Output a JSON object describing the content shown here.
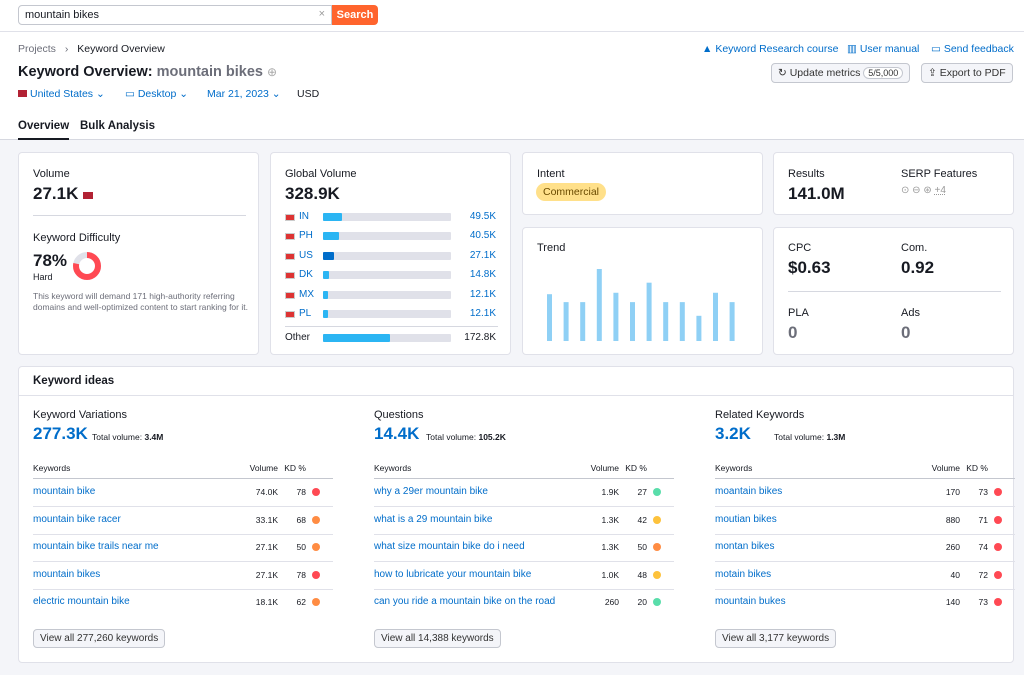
{
  "search": {
    "query": "mountain bikes",
    "button": "Search"
  },
  "breadcrumb": [
    "Projects",
    "Keyword Overview"
  ],
  "top_links": [
    "Keyword Research course",
    "User manual",
    "Send feedback"
  ],
  "header": {
    "title": "Keyword Overview:",
    "keyword": "mountain bikes"
  },
  "actions": {
    "update": "Update metrics",
    "quota": "5/5,000",
    "export": "Export to PDF"
  },
  "filters": [
    "United States",
    "Desktop",
    "Mar 21, 2023",
    "USD"
  ],
  "tabs": [
    "Overview",
    "Bulk Analysis"
  ],
  "volume": {
    "label": "Volume",
    "value": "27.1K"
  },
  "difficulty": {
    "label": "Keyword Difficulty",
    "value": 78,
    "value_label": "78%",
    "level": "Hard",
    "color": "#ff4953",
    "description": "This keyword will demand 171 high-authority referring domains and well-optimized content to start ranking for it."
  },
  "global_volume": {
    "label": "Global Volume",
    "value": 328900,
    "value_label": "328.9K",
    "color": "#2bb5f3",
    "countries": [
      {
        "code": "IN",
        "value": 49500,
        "value_label": "49.5K"
      },
      {
        "code": "PH",
        "value": 40500,
        "value_label": "40.5K"
      },
      {
        "code": "US",
        "value": 27100,
        "value_label": "27.1K"
      },
      {
        "code": "DK",
        "value": 14800,
        "value_label": "14.8K"
      },
      {
        "code": "MX",
        "value": 12100,
        "value_label": "12.1K"
      },
      {
        "code": "PL",
        "value": 12100,
        "value_label": "12.1K"
      }
    ],
    "other": {
      "code": "Other",
      "value": 172800,
      "value_label": "172.8K"
    }
  },
  "intent": {
    "label": "Intent",
    "value": "Commercial"
  },
  "trend": {
    "label": "Trend",
    "color": "#8fd0f5",
    "ylim": [
      0,
      100
    ],
    "values": [
      65,
      54,
      54,
      100,
      67,
      54,
      81,
      54,
      54,
      35,
      67,
      54
    ]
  },
  "results": {
    "label": "Results",
    "value": "141.0M",
    "serp_label": "SERP Features",
    "serp_more": "+4"
  },
  "metrics": [
    {
      "label": "CPC",
      "value": "$0.63"
    },
    {
      "label": "Com.",
      "value": "0.92"
    },
    {
      "label": "PLA",
      "value": "0"
    },
    {
      "label": "Ads",
      "value": "0"
    }
  ],
  "ideas": {
    "title": "Keyword ideas",
    "columns": [
      {
        "title": "Keyword Variations",
        "count": "277.3K",
        "total_label": "Total volume:",
        "total": "3.4M",
        "headers": [
          "Keywords",
          "Volume",
          "KD %"
        ],
        "rows": [
          {
            "keyword": "mountain bike",
            "volume": "74.0K",
            "kd": 78,
            "color": "#ff4953"
          },
          {
            "keyword": "mountain bike racer",
            "volume": "33.1K",
            "kd": 68,
            "color": "#ff8c43"
          },
          {
            "keyword": "mountain bike trails near me",
            "volume": "27.1K",
            "kd": 50,
            "color": "#ff8c43"
          },
          {
            "keyword": "mountain bikes",
            "volume": "27.1K",
            "kd": 78,
            "color": "#ff4953"
          },
          {
            "keyword": "electric mountain bike",
            "volume": "18.1K",
            "kd": 62,
            "color": "#ff8c43"
          }
        ],
        "button": "View all 277,260 keywords"
      },
      {
        "title": "Questions",
        "count": "14.4K",
        "total_label": "Total volume:",
        "total": "105.2K",
        "headers": [
          "Keywords",
          "Volume",
          "KD %"
        ],
        "rows": [
          {
            "keyword": "why a 29er mountain bike",
            "volume": "1.9K",
            "kd": 27,
            "color": "#59ddaa"
          },
          {
            "keyword": "what is a 29 mountain bike",
            "volume": "1.3K",
            "kd": 42,
            "color": "#fdc23c"
          },
          {
            "keyword": "what size mountain bike do i need",
            "volume": "1.3K",
            "kd": 50,
            "color": "#ff8c43"
          },
          {
            "keyword": "how to lubricate your mountain bike",
            "volume": "1.0K",
            "kd": 48,
            "color": "#fdc23c"
          },
          {
            "keyword": "can you ride a mountain bike on the road",
            "volume": "260",
            "kd": 20,
            "color": "#59ddaa"
          }
        ],
        "button": "View all 14,388 keywords"
      },
      {
        "title": "Related Keywords",
        "count": "3.2K",
        "total_label": "Total volume:",
        "total": "1.3M",
        "headers": [
          "Keywords",
          "Volume",
          "KD %"
        ],
        "rows": [
          {
            "keyword": "moantain bikes",
            "volume": "170",
            "kd": 73,
            "color": "#ff4953"
          },
          {
            "keyword": "moutian bikes",
            "volume": "880",
            "kd": 71,
            "color": "#ff4953"
          },
          {
            "keyword": "montan bikes",
            "volume": "260",
            "kd": 74,
            "color": "#ff4953"
          },
          {
            "keyword": "motain bikes",
            "volume": "40",
            "kd": 72,
            "color": "#ff4953"
          },
          {
            "keyword": "mountain bukes",
            "volume": "140",
            "kd": 73,
            "color": "#ff4953"
          }
        ],
        "button": "View all 3,177 keywords"
      }
    ]
  }
}
